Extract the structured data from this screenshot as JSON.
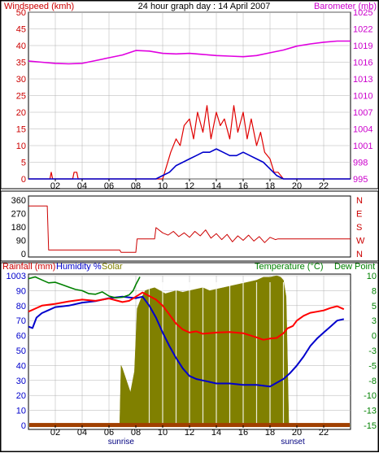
{
  "chart_data": [
    {
      "type": "line",
      "title": "24 hour graph day : 14 April 2007",
      "left_axis_label": "Windspeed (kmh)",
      "right_axis_label": "Barometer (mb)",
      "left_ticks": [
        0,
        5,
        10,
        15,
        20,
        25,
        30,
        35,
        40,
        45,
        50
      ],
      "right_ticks": [
        995,
        998,
        1001,
        1004,
        1007,
        1010,
        1013,
        1016,
        1019,
        1022,
        1025
      ],
      "left_ylim": [
        0,
        50
      ],
      "right_ylim": [
        995,
        1025
      ],
      "x_ticks": [
        "02",
        "04",
        "06",
        "08",
        "10",
        "12",
        "14",
        "16",
        "18",
        "20",
        "22"
      ],
      "x_annotations": [
        {
          "text": "sunrise",
          "hour": 6.9
        },
        {
          "text": "sunset",
          "hour": 19.7
        }
      ],
      "xlim": [
        0,
        24
      ],
      "colors": {
        "windspeed": "#e00000",
        "average": "#0000cc",
        "barometer": "#e000e0"
      },
      "series": [
        {
          "name": "Barometer (mb)",
          "axis": "right",
          "color": "#e000e0",
          "x": [
            0,
            1,
            2,
            3,
            4,
            5,
            6,
            7,
            8,
            9,
            10,
            11,
            12,
            13,
            14,
            15,
            16,
            17,
            18,
            19,
            20,
            21,
            22,
            23,
            24
          ],
          "y": [
            1016.2,
            1016.0,
            1015.8,
            1015.7,
            1015.8,
            1016.3,
            1016.8,
            1017.3,
            1018.1,
            1018.0,
            1017.6,
            1017.5,
            1017.6,
            1017.4,
            1017.2,
            1017.1,
            1017.0,
            1017.2,
            1017.7,
            1018.2,
            1018.9,
            1019.3,
            1019.6,
            1019.8,
            1019.8
          ]
        },
        {
          "name": "Windspeed (kmh)",
          "axis": "left",
          "color": "#e00000",
          "x": [
            0,
            1.6,
            1.7,
            1.8,
            3.3,
            3.4,
            3.6,
            3.7,
            10.0,
            10.3,
            10.6,
            11.0,
            11.3,
            11.6,
            12.0,
            12.3,
            12.6,
            13.0,
            13.3,
            13.6,
            14.0,
            14.3,
            14.6,
            15.0,
            15.3,
            15.6,
            16.0,
            16.3,
            16.6,
            17.0,
            17.3,
            17.6,
            18.0,
            18.3,
            18.6,
            19.0,
            19.3,
            24
          ],
          "y": [
            0,
            0,
            2,
            0,
            0,
            2,
            2,
            0,
            0,
            4,
            8,
            12,
            10,
            16,
            18,
            12,
            20,
            14,
            22,
            12,
            20,
            16,
            18,
            12,
            22,
            14,
            20,
            12,
            18,
            10,
            14,
            8,
            6,
            2,
            2,
            0,
            0,
            0
          ]
        },
        {
          "name": "Average windspeed",
          "axis": "left",
          "color": "#0000cc",
          "x": [
            0,
            9.5,
            10.0,
            10.5,
            11.0,
            11.5,
            12.0,
            12.5,
            13.0,
            13.5,
            14.0,
            14.5,
            15.0,
            15.5,
            16.0,
            16.5,
            17.0,
            17.5,
            18.0,
            18.5,
            19.0,
            24
          ],
          "y": [
            0,
            0,
            1,
            2,
            4,
            5,
            6,
            7,
            8,
            8,
            9,
            8,
            7,
            7,
            8,
            7,
            6,
            5,
            3,
            1,
            0,
            0
          ]
        }
      ]
    },
    {
      "type": "line",
      "title": "",
      "left_ticks": [
        0,
        90,
        180,
        270,
        360
      ],
      "right_ticks": [
        "N",
        "W",
        "S",
        "E",
        "N"
      ],
      "ylim": [
        0,
        360
      ],
      "x_ticks": [],
      "xlim": [
        0,
        24
      ],
      "series": [
        {
          "name": "Wind direction",
          "color": "#cc0000",
          "x": [
            0,
            1.4,
            1.5,
            6.8,
            6.9,
            8.0,
            8.1,
            9.4,
            9.5,
            10.0,
            10.4,
            10.8,
            11.2,
            11.6,
            12.0,
            12.4,
            12.8,
            13.2,
            13.6,
            14.0,
            14.4,
            14.8,
            15.2,
            15.6,
            16.0,
            16.4,
            16.8,
            17.2,
            17.6,
            18.0,
            18.4,
            18.6,
            19.3,
            24
          ],
          "y": [
            320,
            320,
            25,
            25,
            10,
            10,
            100,
            100,
            175,
            140,
            125,
            150,
            115,
            140,
            110,
            150,
            120,
            160,
            105,
            135,
            95,
            130,
            80,
            120,
            90,
            125,
            85,
            115,
            75,
            110,
            95,
            100,
            100,
            100
          ]
        }
      ]
    },
    {
      "type": "line",
      "title": "",
      "left_axis_label": "Rainfall (mm)",
      "humidity_label": "Humidity %",
      "solar_label": "Solar",
      "right_axis_label": "Temperature (°C)",
      "dew_label": "Dew Point",
      "left_ticks": [
        0,
        10,
        20,
        30,
        40,
        50,
        60,
        70,
        80,
        90,
        100
      ],
      "left_top_label": "1003",
      "right_ticks": [
        -15,
        -13,
        -10,
        -8,
        -5,
        -3,
        0,
        3,
        5,
        8,
        10
      ],
      "left_ylim": [
        0,
        100
      ],
      "right_ylim": [
        -15,
        10
      ],
      "x_ticks": [
        "02",
        "04",
        "06",
        "08",
        "10",
        "12",
        "14",
        "16",
        "18",
        "20",
        "22"
      ],
      "x_annotations": [
        {
          "text": "sunrise",
          "hour": 6.9
        },
        {
          "text": "sunset",
          "hour": 19.7
        }
      ],
      "xlim": [
        0,
        24
      ],
      "colors": {
        "solar": "#808000",
        "rain": "#a04000",
        "humidity": "#0000cc",
        "temperature": "#ff0000",
        "dewpoint": "#008000"
      },
      "series": [
        {
          "name": "Solar",
          "axis": "left",
          "color": "#808000",
          "x": [
            0,
            6.8,
            6.9,
            7.0,
            7.3,
            7.6,
            7.9,
            8.1,
            8.4,
            8.7,
            9.0,
            9.4,
            9.8,
            10.2,
            10.6,
            11.0,
            11.5,
            12.0,
            12.5,
            13.0,
            13.5,
            14.0,
            14.5,
            15.0,
            15.5,
            16.0,
            16.5,
            17.0,
            17.5,
            18.0,
            18.5,
            18.8,
            19.0,
            19.2,
            19.3,
            19.4,
            24
          ],
          "y": [
            0,
            0,
            40,
            38,
            30,
            22,
            36,
            78,
            85,
            90,
            91,
            92,
            90,
            88,
            89,
            90,
            89,
            90,
            91,
            92,
            90,
            91,
            92,
            93,
            94,
            95,
            96,
            97,
            99,
            99,
            100,
            99,
            97,
            86,
            45,
            0,
            0
          ]
        },
        {
          "name": "Humidity %",
          "axis": "left",
          "color": "#0000cc",
          "x": [
            0,
            0.3,
            0.6,
            1.0,
            1.5,
            2.0,
            3.0,
            4.0,
            5.0,
            6.0,
            7.0,
            8.0,
            8.5,
            9.0,
            9.5,
            10.0,
            10.5,
            11.0,
            11.5,
            12.0,
            12.5,
            13.0,
            13.5,
            14.0,
            15.0,
            16.0,
            17.0,
            18.0,
            19.0,
            19.5,
            20.0,
            20.5,
            21.0,
            21.5,
            22.0,
            22.5,
            23.0,
            23.5
          ],
          "y": [
            66,
            65,
            72,
            75,
            77,
            79,
            80,
            82,
            83,
            85,
            86,
            85,
            86,
            80,
            72,
            62,
            53,
            45,
            38,
            33,
            31,
            30,
            29,
            28,
            28,
            27,
            27,
            26,
            31,
            35,
            40,
            46,
            53,
            58,
            62,
            66,
            70,
            71
          ]
        },
        {
          "name": "Temperature (°C)",
          "axis": "right",
          "color": "#ff0000",
          "x": [
            0,
            0.5,
            1.0,
            2.0,
            3.0,
            4.0,
            5.0,
            6.0,
            7.0,
            7.5,
            8.0,
            8.5,
            9.0,
            9.5,
            10.0,
            10.5,
            11.0,
            11.5,
            12.0,
            12.5,
            13.0,
            14.0,
            15.0,
            16.0,
            17.0,
            17.5,
            18.0,
            18.5,
            19.0,
            19.3,
            19.7,
            20.0,
            20.5,
            21.0,
            21.5,
            22.0,
            22.5,
            23.0,
            23.5
          ],
          "y": [
            4.0,
            4.5,
            5.0,
            5.3,
            5.7,
            6.0,
            5.8,
            6.2,
            5.6,
            5.8,
            6.5,
            7.2,
            6.6,
            6.0,
            5.0,
            3.5,
            2.0,
            1.0,
            0.5,
            0.7,
            0.3,
            0.5,
            0.6,
            0.4,
            -0.3,
            -0.7,
            -0.5,
            -0.4,
            0.4,
            1.2,
            1.6,
            2.5,
            3.3,
            3.8,
            4.0,
            4.2,
            4.6,
            4.9,
            4.4
          ]
        },
        {
          "name": "Dew Point",
          "axis": "right",
          "color": "#008000",
          "x": [
            0,
            0.5,
            1.0,
            1.5,
            2.0,
            2.5,
            3.0,
            3.5,
            4.0,
            4.5,
            5.0,
            5.5,
            6.0,
            6.5,
            7.0,
            7.5,
            7.8,
            8.0,
            8.3
          ],
          "y": [
            9.5,
            9.8,
            9.3,
            8.8,
            8.9,
            8.5,
            8.1,
            7.7,
            7.5,
            7.0,
            6.9,
            7.3,
            6.6,
            6.3,
            6.4,
            6.8,
            7.5,
            8.5,
            9.8
          ]
        },
        {
          "name": "Rainfall (mm)",
          "axis": "left",
          "color": "#a04000",
          "x": [
            0,
            24
          ],
          "y": [
            0.5,
            0.5
          ]
        }
      ]
    }
  ]
}
